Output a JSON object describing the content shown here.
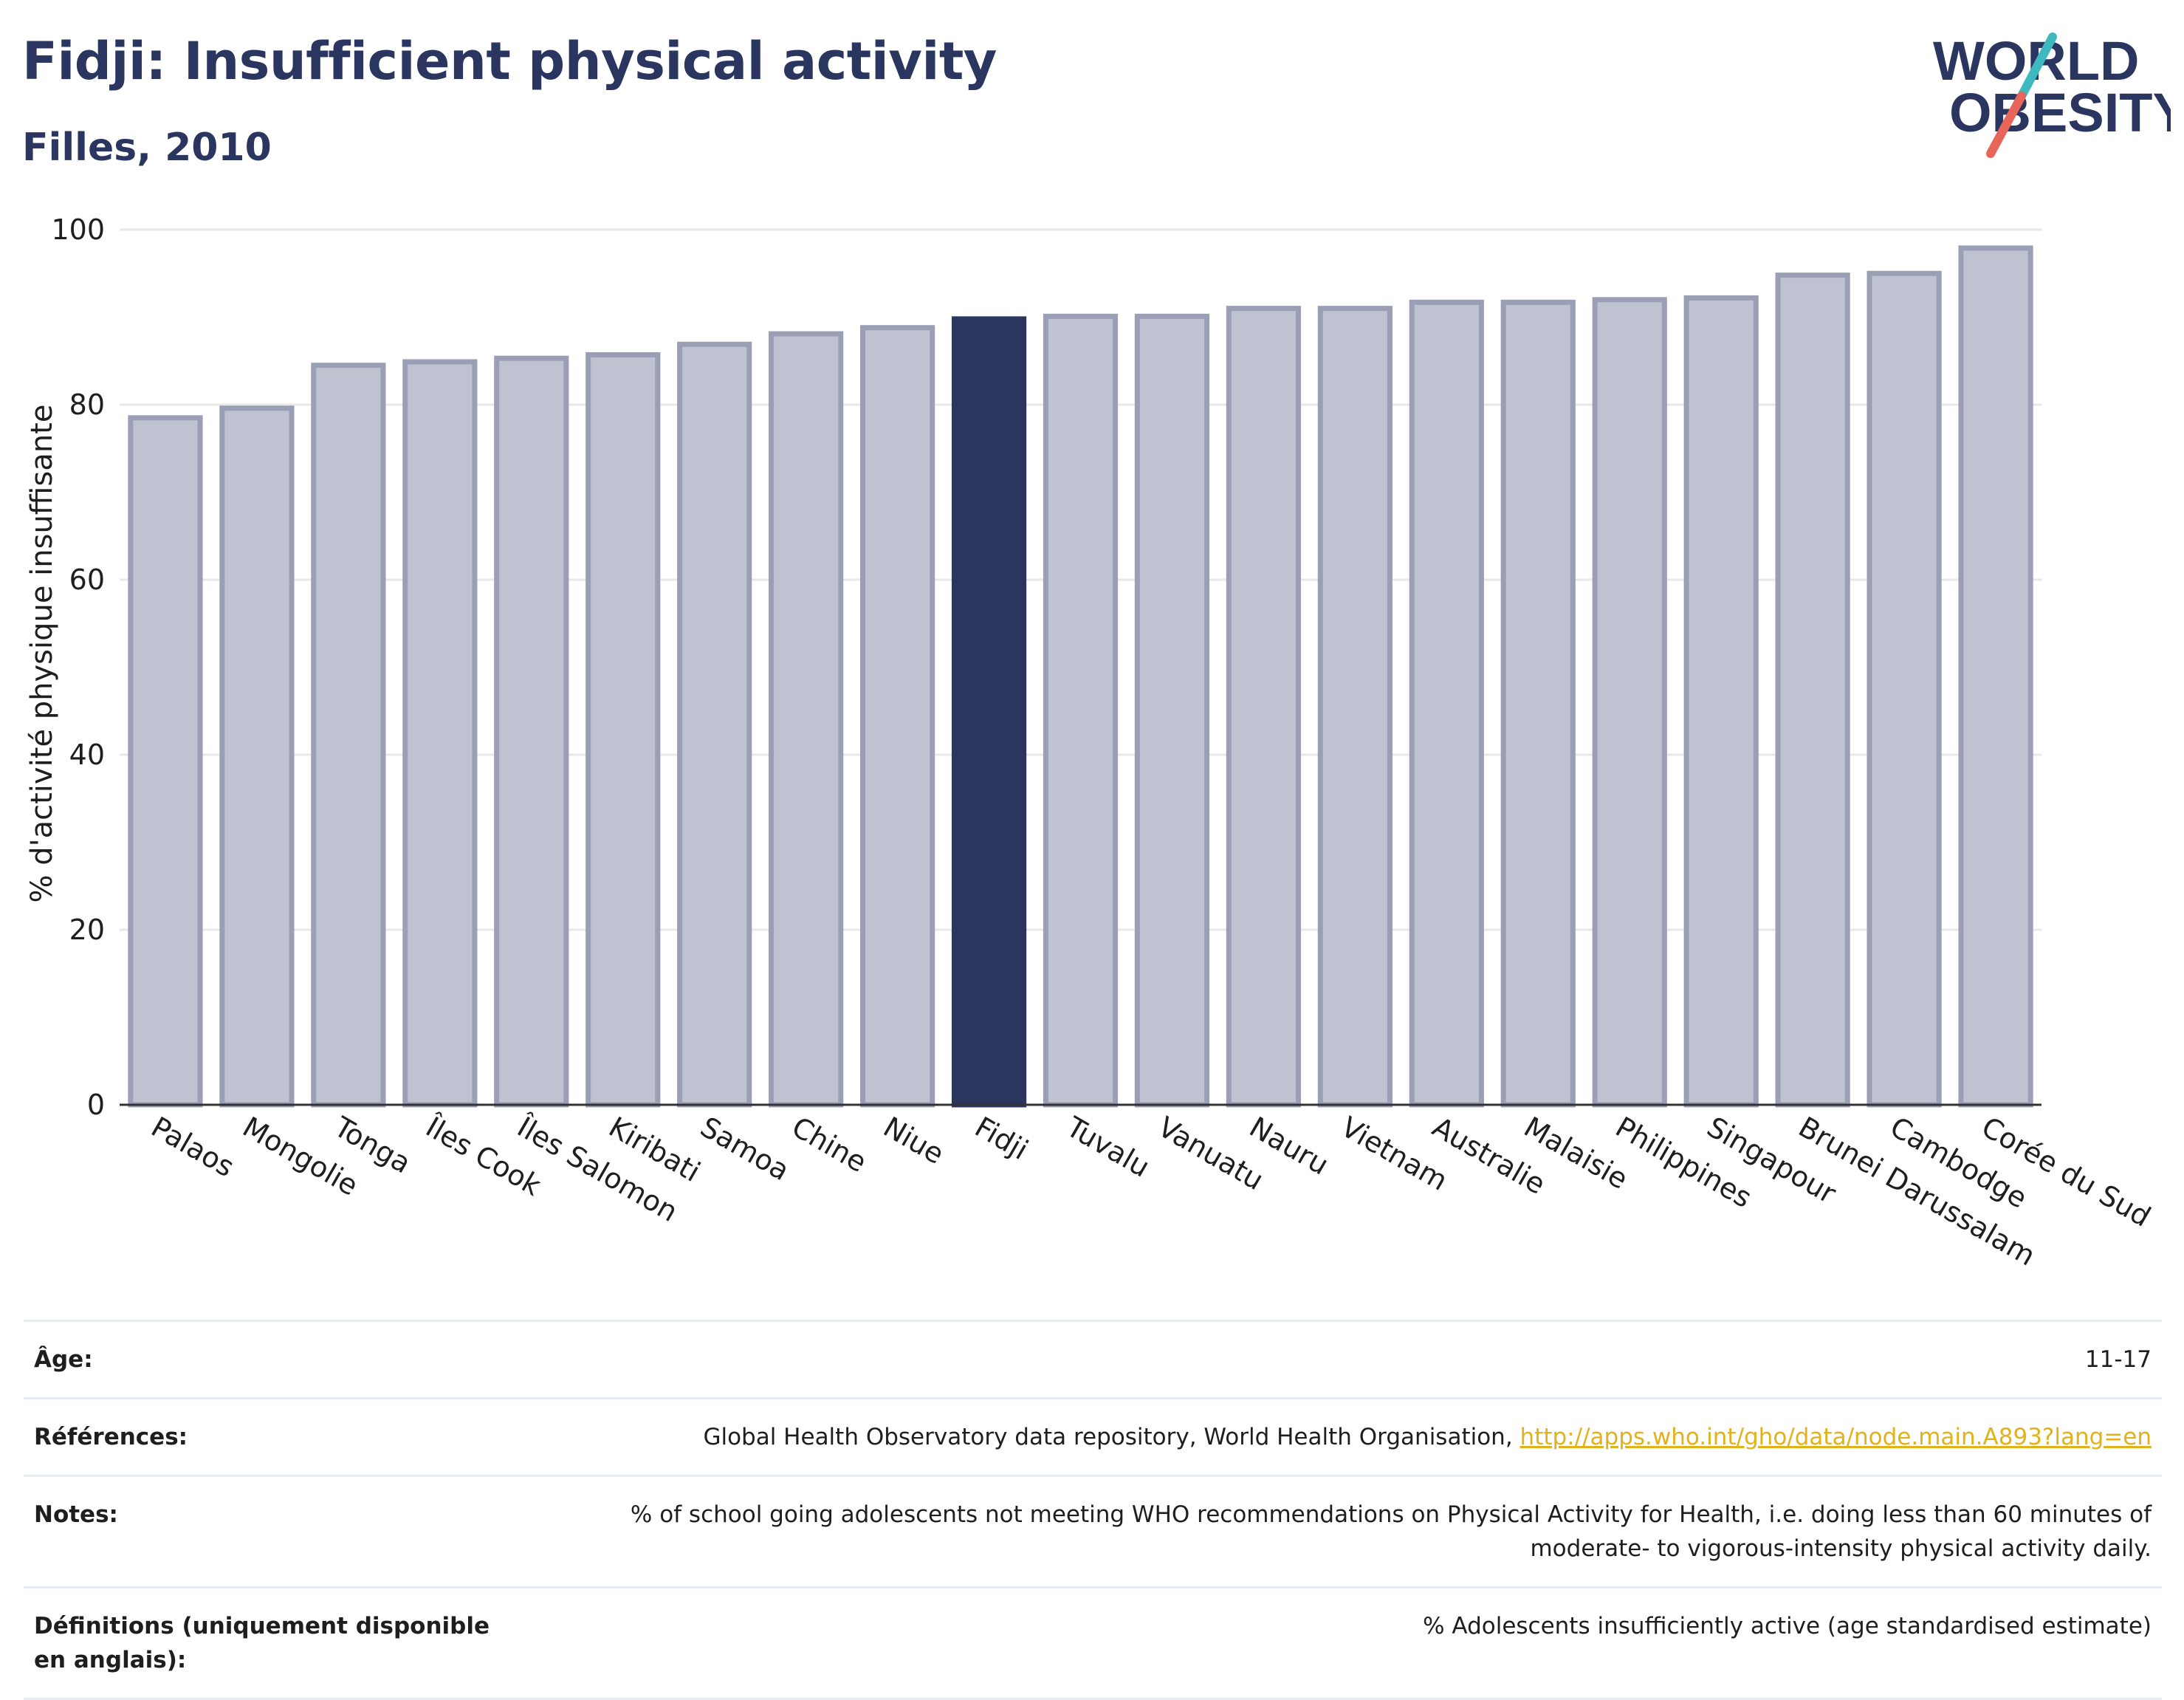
{
  "header": {
    "title": "Fidji: Insufficient physical activity",
    "subtitle": "Filles, 2010"
  },
  "logo": {
    "line1": "WORLD",
    "line2": "OBESITY",
    "colors": {
      "text": "#2a3560",
      "slash_teal": "#3fb8c0",
      "slash_red": "#e8655a"
    }
  },
  "colors": {
    "highlight": "#2a3560",
    "bar_fill": "#bfc2d0",
    "bar_stroke": "#9a9fb6",
    "grid": "#e8e8e8"
  },
  "chart_data": {
    "type": "bar",
    "title": "Fidji: Insufficient physical activity",
    "subtitle": "Filles, 2010",
    "xlabel": "",
    "ylabel": "% d'activité physique insuffisante",
    "ylim": [
      0,
      100
    ],
    "yticks": [
      0,
      20,
      40,
      60,
      80,
      100
    ],
    "grid": true,
    "highlight": "Fidji",
    "categories": [
      "Palaos",
      "Mongolie",
      "Tonga",
      "Îles Cook",
      "Îles Salomon",
      "Kiribati",
      "Samoa",
      "Chine",
      "Niue",
      "Fidji",
      "Tuvalu",
      "Vanuatu",
      "Nauru",
      "Vietnam",
      "Australie",
      "Malaisie",
      "Philippines",
      "Singapour",
      "Brunei Darussalam",
      "Cambodge",
      "Corée du Sud"
    ],
    "values": [
      78.5,
      79.6,
      84.5,
      84.9,
      85.3,
      85.7,
      86.9,
      88.1,
      88.8,
      89.8,
      90.1,
      90.1,
      91.0,
      91.0,
      91.7,
      91.7,
      92.0,
      92.2,
      94.8,
      95.0,
      97.9
    ]
  },
  "info": {
    "rows": [
      {
        "label": "Âge:",
        "value": "11-17"
      },
      {
        "label": "Références:",
        "value": "Global Health Observatory data repository, World Health Organisation, ",
        "link": "http://apps.who.int/gho/data/node.main.A893?lang=en"
      },
      {
        "label": "Notes:",
        "value": "% of school going adolescents not meeting WHO recommendations on Physical Activity for Health, i.e. doing less than 60 minutes of moderate- to vigorous-intensity physical activity daily."
      },
      {
        "label": "Définitions (uniquement disponible en anglais):",
        "value": "% Adolescents insufficiently active (age standardised estimate)"
      }
    ]
  }
}
